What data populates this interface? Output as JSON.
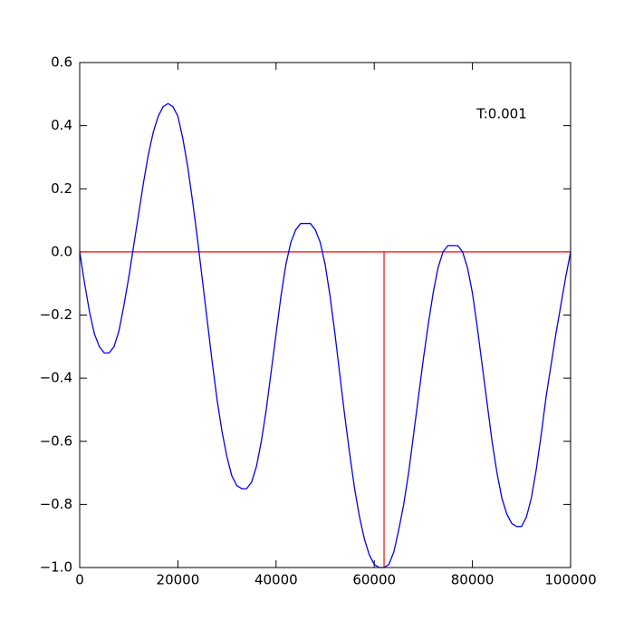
{
  "chart_data": {
    "type": "line",
    "annotation": "T:0.001",
    "x": [
      0,
      1000,
      2000,
      3000,
      4000,
      5000,
      6000,
      7000,
      8000,
      9000,
      10000,
      11000,
      12000,
      13000,
      14000,
      15000,
      16000,
      17000,
      18000,
      19000,
      20000,
      21000,
      22000,
      23000,
      24000,
      25000,
      26000,
      27000,
      28000,
      29000,
      30000,
      31000,
      32000,
      33000,
      34000,
      35000,
      36000,
      37000,
      38000,
      39000,
      40000,
      41000,
      42000,
      43000,
      44000,
      45000,
      46000,
      47000,
      48000,
      49000,
      50000,
      51000,
      52000,
      53000,
      54000,
      55000,
      56000,
      57000,
      58000,
      59000,
      60000,
      61000,
      62000,
      63000,
      64000,
      65000,
      66000,
      67000,
      68000,
      69000,
      70000,
      71000,
      72000,
      73000,
      74000,
      75000,
      76000,
      77000,
      78000,
      79000,
      80000,
      81000,
      82000,
      83000,
      84000,
      85000,
      86000,
      87000,
      88000,
      89000,
      90000,
      91000,
      92000,
      93000,
      94000,
      95000,
      96000,
      97000,
      98000,
      99000,
      100000
    ],
    "series": [
      {
        "color": "#0000ff",
        "values": [
          0,
          -0.1,
          -0.19,
          -0.26,
          -0.3,
          -0.32,
          -0.32,
          -0.3,
          -0.25,
          -0.17,
          -0.08,
          0.02,
          0.12,
          0.22,
          0.31,
          0.38,
          0.43,
          0.46,
          0.47,
          0.46,
          0.43,
          0.36,
          0.27,
          0.16,
          0.04,
          -0.09,
          -0.22,
          -0.35,
          -0.47,
          -0.57,
          -0.65,
          -0.71,
          -0.74,
          -0.75,
          -0.75,
          -0.73,
          -0.68,
          -0.6,
          -0.5,
          -0.38,
          -0.26,
          -0.14,
          -0.04,
          0.03,
          0.07,
          0.09,
          0.09,
          0.09,
          0.07,
          0.03,
          -0.04,
          -0.14,
          -0.26,
          -0.39,
          -0.52,
          -0.64,
          -0.75,
          -0.84,
          -0.91,
          -0.96,
          -0.99,
          -1.0,
          -1.0,
          -0.99,
          -0.95,
          -0.88,
          -0.8,
          -0.7,
          -0.58,
          -0.46,
          -0.34,
          -0.23,
          -0.13,
          -0.05,
          0.0,
          0.02,
          0.02,
          0.02,
          0.0,
          -0.05,
          -0.13,
          -0.24,
          -0.36,
          -0.48,
          -0.6,
          -0.7,
          -0.78,
          -0.83,
          -0.86,
          -0.87,
          -0.87,
          -0.84,
          -0.78,
          -0.69,
          -0.58,
          -0.46,
          -0.36,
          -0.26,
          -0.17,
          -0.08,
          0.0
        ]
      }
    ],
    "hline": {
      "y": 0,
      "color": "#ff0000"
    },
    "vline": {
      "x": 62000,
      "ymin": -1,
      "ymax": 0,
      "color": "#ff0000"
    },
    "xlim": [
      0,
      100000
    ],
    "ylim": [
      -1,
      0.6
    ],
    "xticks": [
      0,
      20000,
      40000,
      60000,
      80000,
      100000
    ],
    "yticks": [
      {
        "value": -1,
        "label": "−1.0"
      },
      {
        "value": -0.8,
        "label": "−0.8"
      },
      {
        "value": -0.6,
        "label": "−0.6"
      },
      {
        "value": -0.4,
        "label": "−0.4"
      },
      {
        "value": -0.2,
        "label": "−0.2"
      },
      {
        "value": 0,
        "label": "0.0"
      },
      0.2,
      0.4,
      0.6
    ]
  }
}
